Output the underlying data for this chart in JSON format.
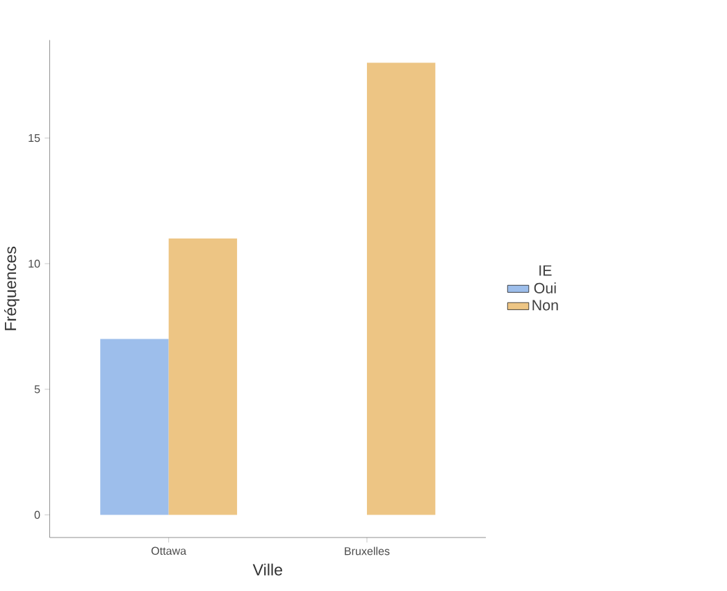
{
  "chart_data": {
    "type": "bar",
    "xlabel": "Ville",
    "ylabel": "Fréquences",
    "legend_title": "IE",
    "categories": [
      "Ottawa",
      "Bruxelles"
    ],
    "series": [
      {
        "name": "Oui",
        "color": "#9dbeeb",
        "values": [
          7,
          null
        ]
      },
      {
        "name": "Non",
        "color": "#edc584",
        "values": [
          11,
          18
        ]
      }
    ],
    "ylim": [
      -0.9,
      18.9
    ],
    "yticks": [
      0,
      5,
      10,
      15
    ],
    "legend": "right",
    "grid": false
  }
}
